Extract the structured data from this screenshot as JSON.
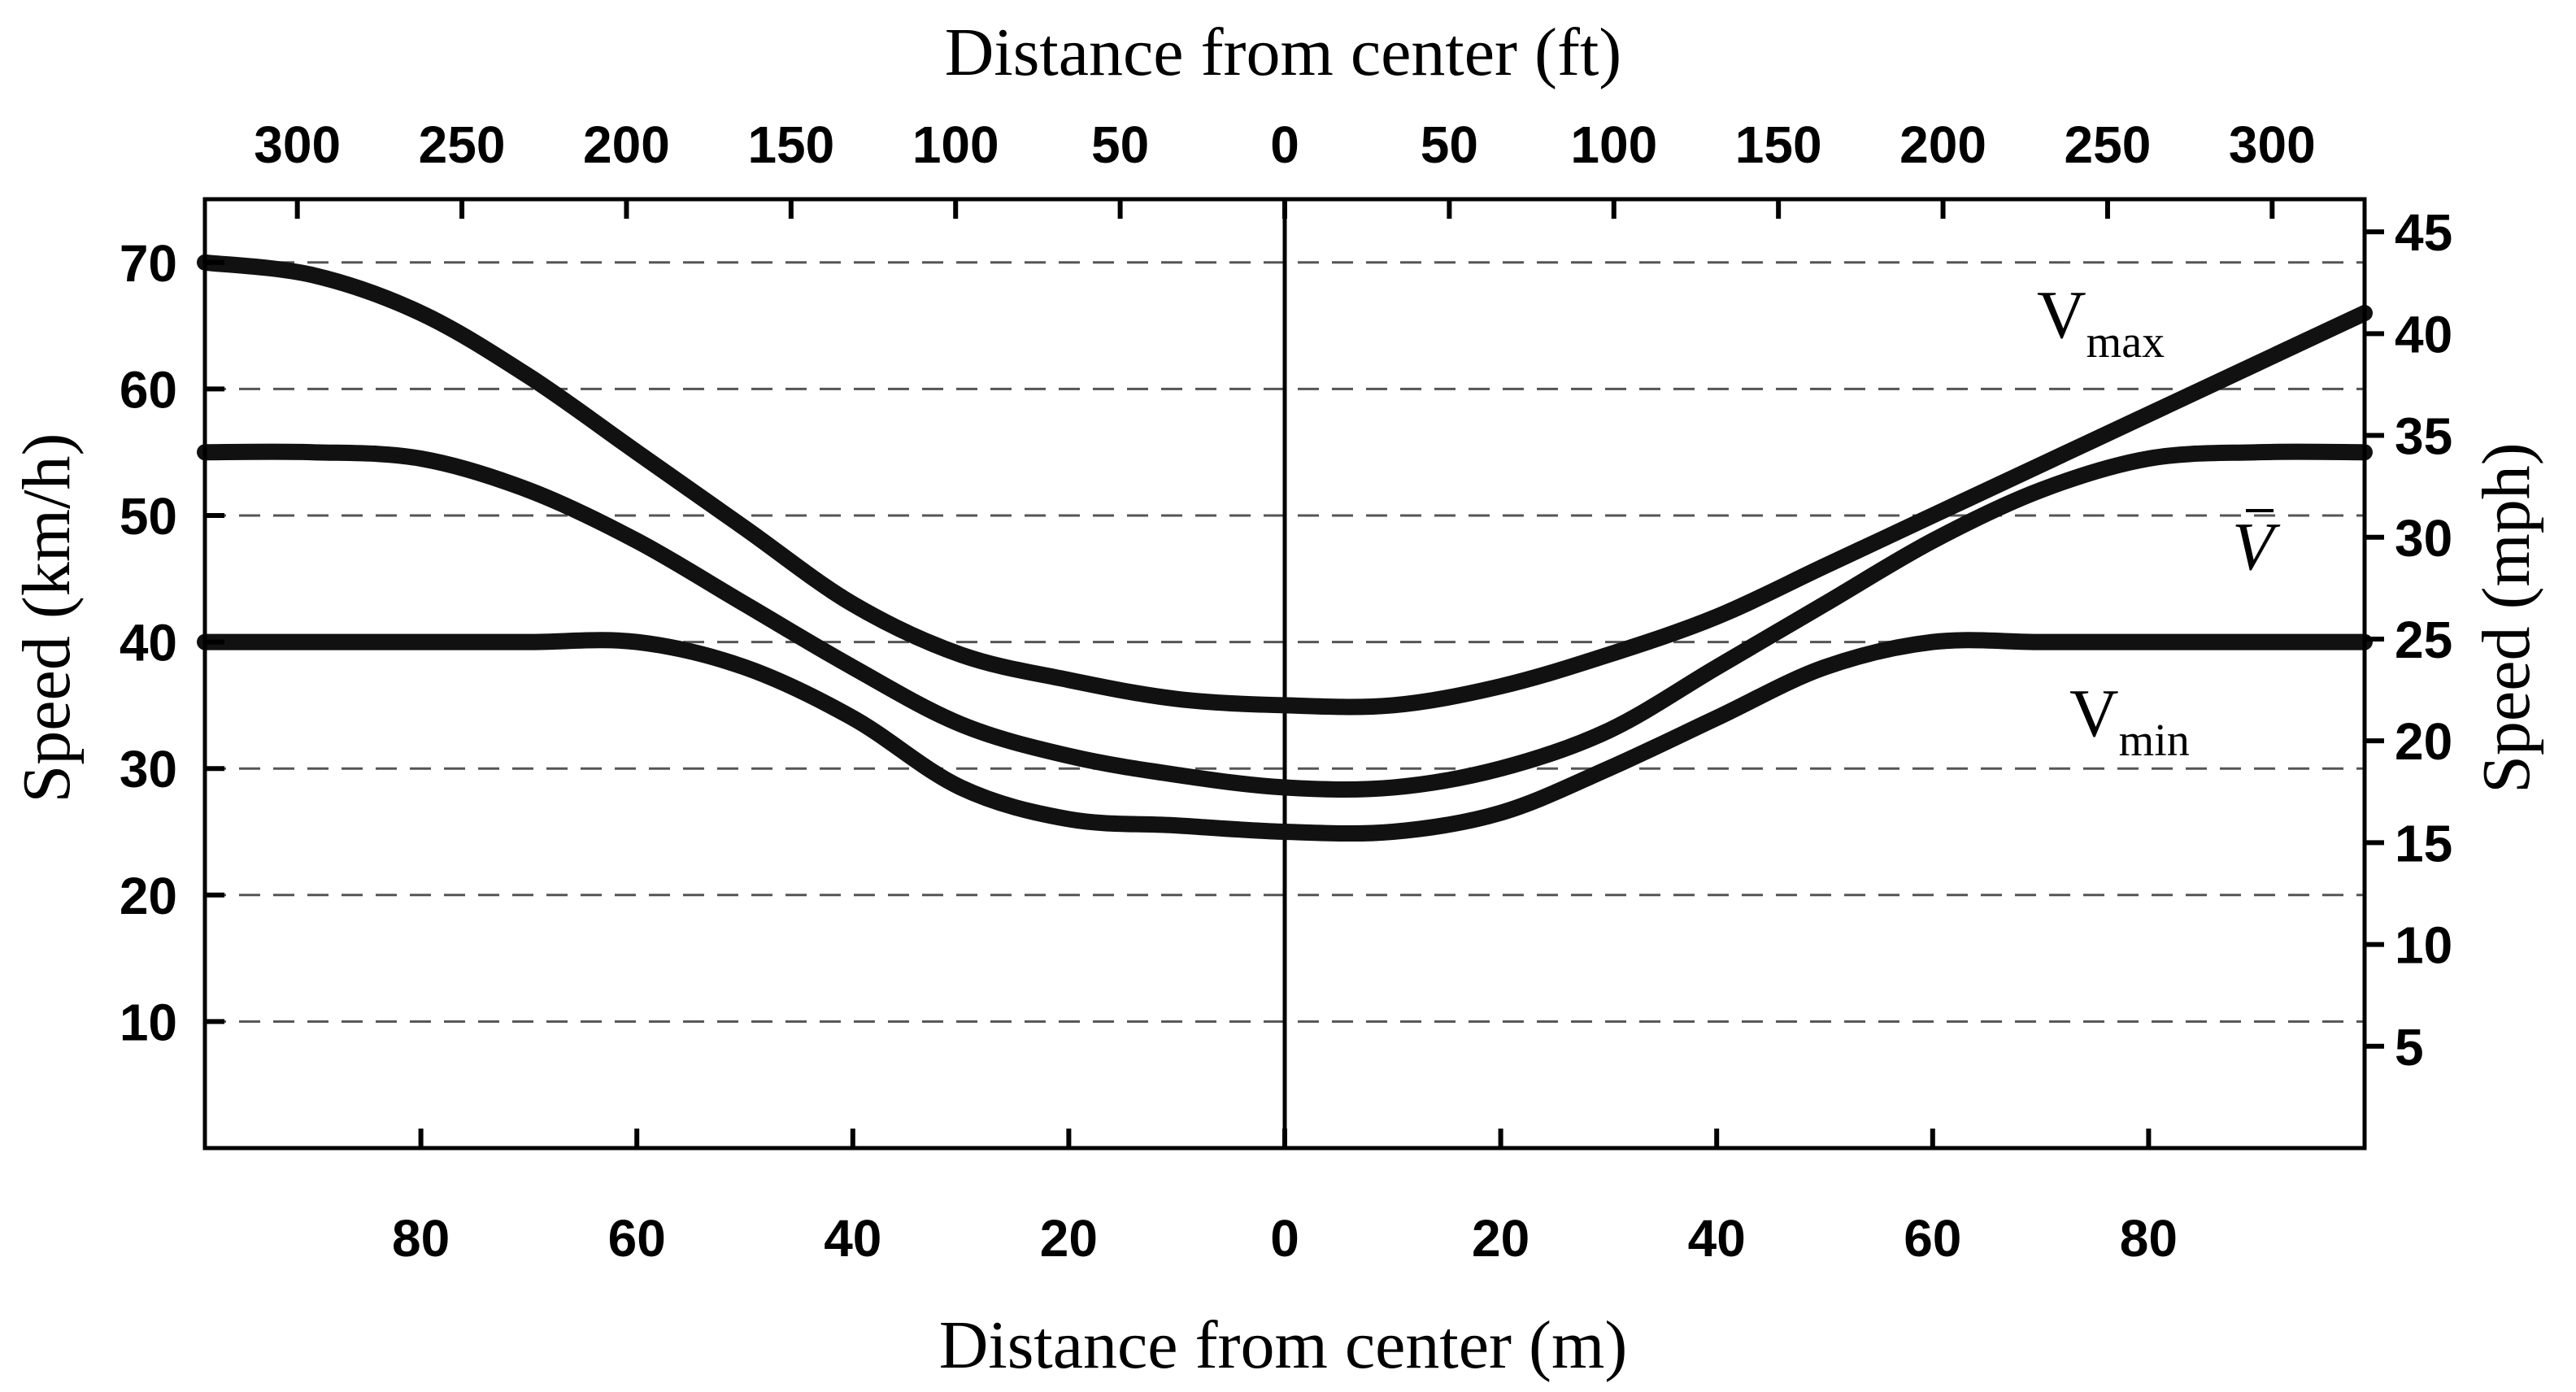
{
  "chart_data": {
    "type": "line",
    "xlabel_bottom": "Distance from center (m)",
    "xlabel_top": "Distance from center (ft)",
    "ylabel_left": "Speed (km/h)",
    "ylabel_right": "Speed (mph)",
    "xlim": [
      -100,
      100
    ],
    "ylim": [
      0,
      75
    ],
    "x_ticks_bottom": [
      -80,
      -60,
      -40,
      -20,
      0,
      20,
      40,
      60,
      80
    ],
    "x_tick_labels_bottom": [
      "80",
      "60",
      "40",
      "20",
      "0",
      "20",
      "40",
      "60",
      "80"
    ],
    "x_ticks_top_ft": [
      -300,
      -250,
      -200,
      -150,
      -100,
      -50,
      0,
      50,
      100,
      150,
      200,
      250,
      300
    ],
    "x_tick_labels_top": [
      "300",
      "250",
      "200",
      "150",
      "100",
      "50",
      "0",
      "50",
      "100",
      "150",
      "200",
      "250",
      "300"
    ],
    "y_ticks_left": [
      10,
      20,
      30,
      40,
      50,
      60,
      70
    ],
    "y_tick_labels_left": [
      "10",
      "20",
      "30",
      "40",
      "50",
      "60",
      "70"
    ],
    "y_ticks_right_mph": [
      5,
      10,
      15,
      20,
      25,
      30,
      35,
      40,
      45
    ],
    "y_tick_labels_right": [
      "5",
      "10",
      "15",
      "20",
      "25",
      "30",
      "35",
      "40",
      "45"
    ],
    "grid": "horizontal dashed",
    "series": [
      {
        "name": "Vmax",
        "label_main": "V",
        "label_sub": "max",
        "x": [
          -100,
          -90,
          -80,
          -70,
          -60,
          -50,
          -40,
          -30,
          -20,
          -10,
          0,
          10,
          20,
          30,
          40,
          50,
          60,
          70,
          80,
          90,
          100
        ],
        "y": [
          70,
          69,
          66,
          61,
          55,
          49,
          43,
          39,
          37,
          35.5,
          35,
          35,
          36.5,
          39,
          42,
          46,
          50,
          54,
          58,
          62,
          66
        ]
      },
      {
        "name": "Vbar",
        "label_main": "V",
        "x": [
          -100,
          -90,
          -80,
          -70,
          -60,
          -50,
          -40,
          -30,
          -20,
          -10,
          0,
          10,
          20,
          30,
          40,
          50,
          60,
          70,
          80,
          90,
          100
        ],
        "y": [
          55,
          55,
          54.5,
          52,
          48,
          43,
          38,
          33.5,
          31,
          29.5,
          28.5,
          28.5,
          30,
          33,
          38,
          43,
          48,
          52,
          54.5,
          55,
          55
        ]
      },
      {
        "name": "Vmin",
        "label_main": "V",
        "label_sub": "min",
        "x": [
          -100,
          -90,
          -80,
          -70,
          -60,
          -50,
          -40,
          -30,
          -20,
          -10,
          0,
          10,
          20,
          30,
          40,
          50,
          60,
          70,
          80,
          90,
          100
        ],
        "y": [
          40,
          40,
          40,
          40,
          40,
          38,
          34,
          28.5,
          26,
          25.5,
          25,
          25,
          26.5,
          30,
          34,
          38,
          40,
          40,
          40,
          40,
          40
        ]
      }
    ]
  }
}
